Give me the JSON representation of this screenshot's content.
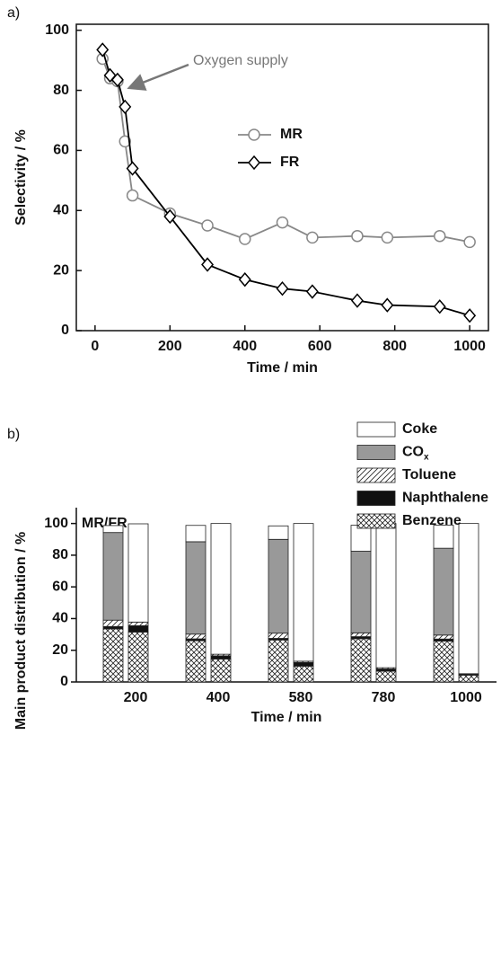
{
  "chart_data": [
    {
      "type": "line",
      "panel_label": "a)",
      "xlabel": "Time / min",
      "ylabel": "Selectivity / %",
      "xlim": [
        -50,
        1050
      ],
      "xticks": [
        0,
        200,
        400,
        600,
        800,
        1000
      ],
      "ylim": [
        0,
        102
      ],
      "yticks": [
        0,
        20,
        40,
        60,
        80,
        100
      ],
      "annotation": "Oxygen supply",
      "series": [
        {
          "name": "MR",
          "color": "#888888",
          "marker": "circle",
          "x": [
            20,
            40,
            60,
            80,
            100,
            200,
            300,
            400,
            500,
            580,
            700,
            780,
            920,
            1000
          ],
          "values": [
            90.5,
            84,
            83,
            63,
            45,
            39,
            35,
            30.5,
            36,
            31,
            31.5,
            31,
            31.5,
            29.5
          ]
        },
        {
          "name": "FR",
          "color": "#000000",
          "marker": "diamond",
          "x": [
            20,
            40,
            60,
            80,
            100,
            200,
            300,
            400,
            500,
            580,
            700,
            780,
            920,
            1000
          ],
          "values": [
            93.5,
            85,
            83.5,
            74.5,
            54,
            38,
            22,
            17,
            14,
            13,
            10,
            8.5,
            8,
            5
          ]
        }
      ]
    },
    {
      "type": "stacked_bar",
      "panel_label": "b)",
      "group_label": "MR/FR",
      "xlabel": "Time / min",
      "ylabel": "Main product distribution / %",
      "categories": [
        "200",
        "400",
        "580",
        "780",
        "1000"
      ],
      "ylim": [
        0,
        110
      ],
      "yticks": [
        0,
        20,
        40,
        60,
        80,
        100
      ],
      "series": [
        {
          "name": "Benzene",
          "pattern": "crosshatch",
          "values": [
            [
              33.5,
              31.5
            ],
            [
              26,
              14.5
            ],
            [
              26.5,
              10
            ],
            [
              27.3,
              6.8
            ],
            [
              25.8,
              4.3
            ]
          ]
        },
        {
          "name": "Naphthalene",
          "pattern": "solid-black",
          "values": [
            [
              1.5,
              4
            ],
            [
              1.2,
              2
            ],
            [
              1,
              2.3
            ],
            [
              1.3,
              1.4
            ],
            [
              1.3,
              0.6
            ]
          ]
        },
        {
          "name": "Toluene",
          "pattern": "diagonal",
          "values": [
            [
              4,
              2.3
            ],
            [
              3,
              1
            ],
            [
              3.3,
              0.8
            ],
            [
              2.4,
              0.8
            ],
            [
              2.5,
              0.3
            ]
          ]
        },
        {
          "name": "CO",
          "name_subscript": "x",
          "pattern": "gray",
          "values": [
            [
              55.3,
              0
            ],
            [
              58.3,
              0
            ],
            [
              59.2,
              0
            ],
            [
              51.5,
              0
            ],
            [
              54.8,
              0
            ]
          ]
        },
        {
          "name": "Coke",
          "pattern": "white",
          "values": [
            [
              4.4,
              62
            ],
            [
              10.3,
              82.5
            ],
            [
              8.5,
              86.9
            ],
            [
              16.4,
              91
            ],
            [
              14.5,
              94.8
            ]
          ]
        }
      ]
    }
  ]
}
